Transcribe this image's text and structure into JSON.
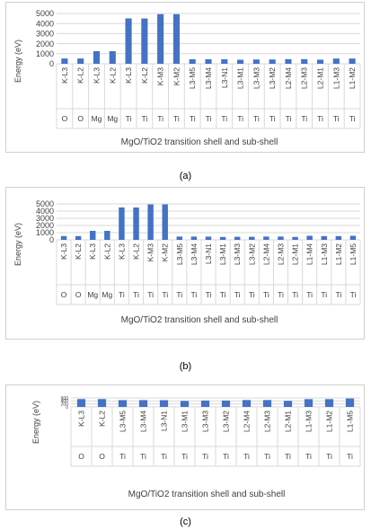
{
  "figure": {
    "captions": [
      "(a)",
      "(b)",
      "(c)"
    ],
    "bar_color": "#4472c4",
    "grid_color": "#d9d9d9",
    "text_color": "#404040"
  },
  "chart_data": [
    {
      "type": "bar",
      "panel": "a",
      "xlabel": "MgO/TiO2  transition shell and sub-shell",
      "ylabel": "Energy (eV)",
      "ylim": [
        0,
        5000
      ],
      "yticks": [
        0,
        1000,
        2000,
        3000,
        4000,
        5000
      ],
      "grid": true,
      "categories": [
        "K-L3",
        "K-L2",
        "K-L3",
        "K-L2",
        "K-L3",
        "K-L2",
        "K-M3",
        "K-M2",
        "L3-M5",
        "L3-M4",
        "L3-N1",
        "L3-M1",
        "L3-M3",
        "L3-M2",
        "L2-M4",
        "L2-M3",
        "L2-M1",
        "L1-M3",
        "L1-M2"
      ],
      "elements": [
        "O",
        "O",
        "Mg",
        "Mg",
        "Ti",
        "Ti",
        "Ti",
        "Ti",
        "Ti",
        "Ti",
        "Ti",
        "Ti",
        "Ti",
        "Ti",
        "Ti",
        "Ti",
        "Ti",
        "Ti",
        "Ti"
      ],
      "values": [
        525,
        525,
        1254,
        1254,
        4510,
        4504,
        4931,
        4931,
        455,
        455,
        450,
        401,
        426,
        426,
        461,
        461,
        406,
        520,
        520
      ]
    },
    {
      "type": "bar",
      "panel": "b",
      "xlabel": "MgO/TiO2  transition shell and sub-shell",
      "ylabel": "Energy (eV)",
      "ylim": [
        0,
        5000
      ],
      "yticks": [
        0,
        1000,
        2000,
        3000,
        4000,
        5000
      ],
      "grid": true,
      "categories": [
        "K-L3",
        "K-L2",
        "K-L3",
        "K-L2",
        "K-L3",
        "K-L2",
        "K-M3",
        "K-M2",
        "L3-M5",
        "L3-M4",
        "L3-N1",
        "L3-M1",
        "L3-M3",
        "L3-M2",
        "L2-M4",
        "L2-M3",
        "L2-M1",
        "L1-M4",
        "L1-M3",
        "L1-M2",
        "L1-M5"
      ],
      "elements": [
        "O",
        "O",
        "Mg",
        "Mg",
        "Ti",
        "Ti",
        "Ti",
        "Ti",
        "Ti",
        "Ti",
        "Ti",
        "Ti",
        "Ti",
        "Ti",
        "Ti",
        "Ti",
        "Ti",
        "Ti",
        "Ti",
        "Ti",
        "Ti"
      ],
      "values": [
        525,
        525,
        1254,
        1254,
        4510,
        4504,
        4931,
        4931,
        455,
        455,
        450,
        401,
        426,
        426,
        461,
        461,
        406,
        564,
        520,
        520,
        564
      ]
    },
    {
      "type": "bar",
      "panel": "c",
      "xlabel": "MgO/TiO2  transition shell and sub-shell",
      "ylabel": "Energy (eV)",
      "ylim": [
        0,
        600
      ],
      "yticks": [
        0,
        200,
        400,
        600
      ],
      "grid": true,
      "categories": [
        "K-L3",
        "K-L2",
        "L3-M5",
        "L3-M4",
        "L3-N1",
        "L3-M1",
        "L3-M3",
        "L3-M2",
        "L2-M4",
        "L2-M3",
        "L2-M1",
        "L1-M3",
        "L1-M2",
        "L1-M5"
      ],
      "elements": [
        "O",
        "O",
        "Ti",
        "Ti",
        "Ti",
        "Ti",
        "Ti",
        "Ti",
        "Ti",
        "Ti",
        "Ti",
        "Ti",
        "Ti",
        "Ti"
      ],
      "values": [
        525,
        525,
        455,
        455,
        450,
        401,
        426,
        426,
        461,
        461,
        406,
        520,
        520,
        564
      ]
    }
  ]
}
